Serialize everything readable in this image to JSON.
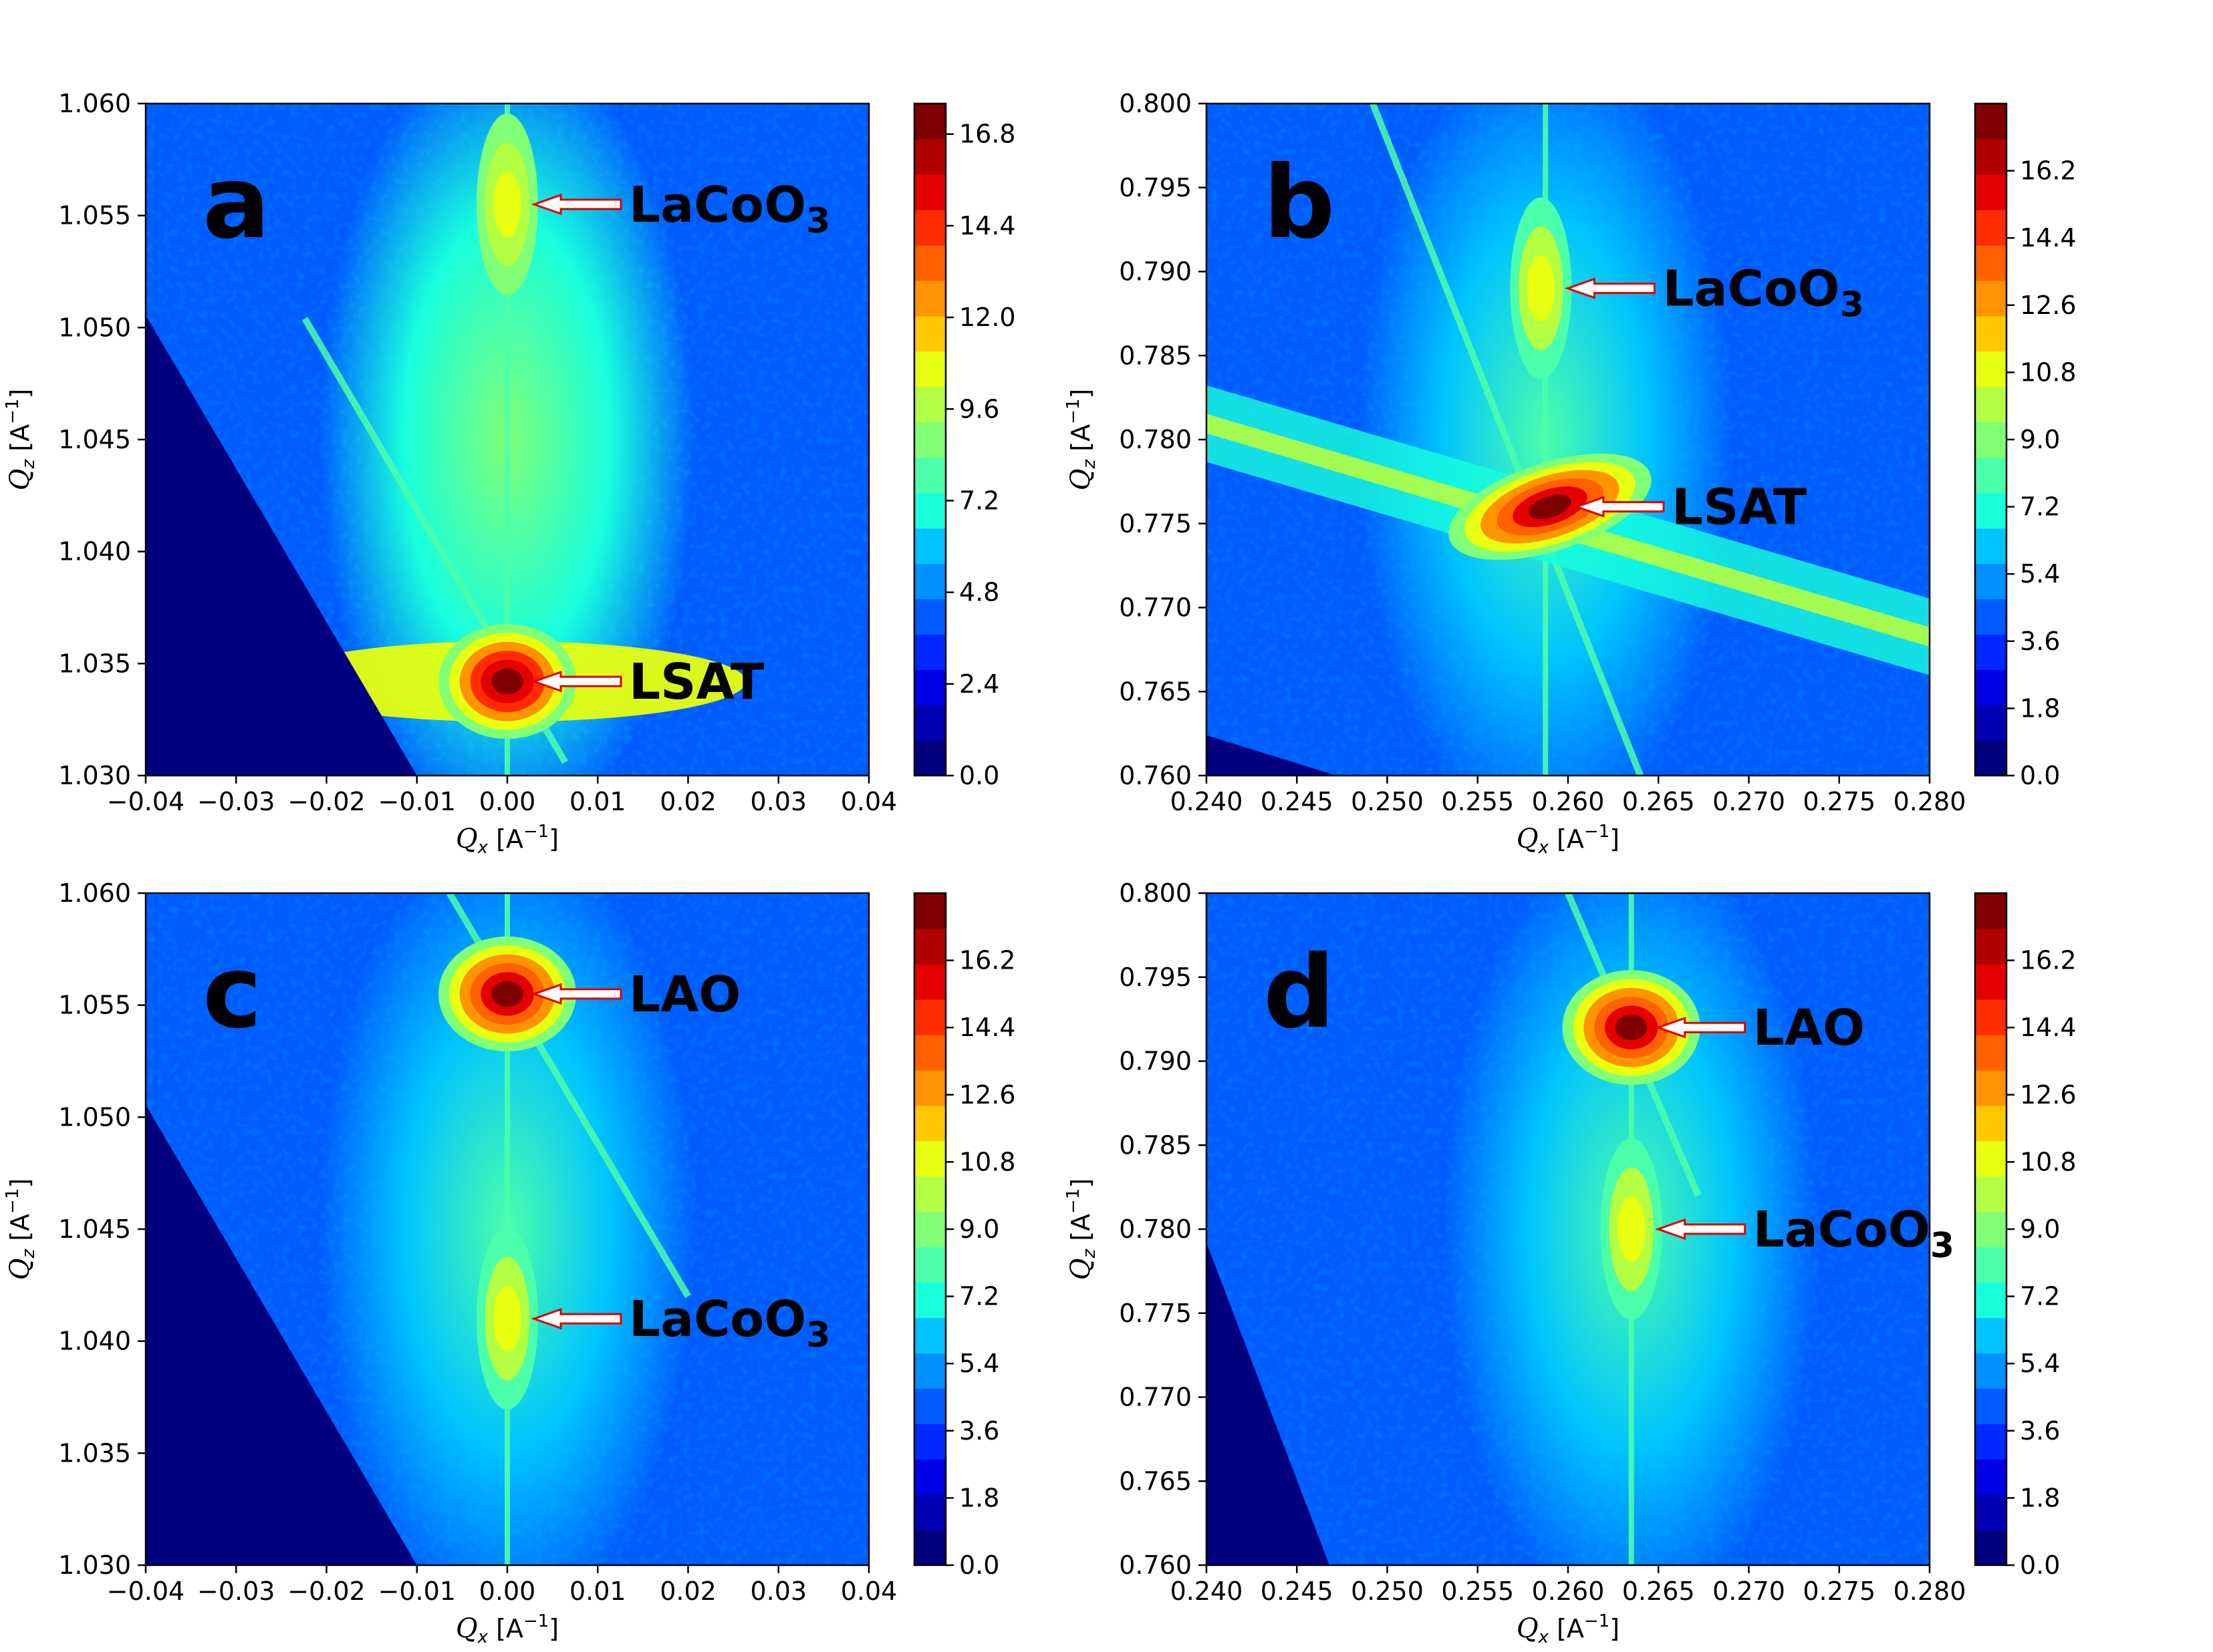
{
  "figure_title": "",
  "colormap": [
    "#00007f",
    "#0000b2",
    "#0000e5",
    "#0028ff",
    "#005cff",
    "#0090ff",
    "#00c4ff",
    "#18ffde",
    "#4cffaa",
    "#80ff77",
    "#b3ff43",
    "#e7ff10",
    "#ffc800",
    "#ff9400",
    "#ff6000",
    "#ff2c00",
    "#e50000",
    "#b20000",
    "#7f0000"
  ],
  "chart_data": [
    {
      "type": "heatmap",
      "panel": "a",
      "xlabel": "Q_x [A^-1]",
      "ylabel": "Q_z [A^-1]",
      "xlim": [
        -0.04,
        0.04
      ],
      "ylim": [
        1.03,
        1.06
      ],
      "xticks": [
        "-0.04",
        "-0.03",
        "-0.02",
        "-0.01",
        "0.00",
        "0.01",
        "0.02",
        "0.03",
        "0.04"
      ],
      "yticks": [
        "1.030",
        "1.035",
        "1.040",
        "1.045",
        "1.050",
        "1.055",
        "1.060"
      ],
      "colorbar_ticks": [
        "0.0",
        "2.4",
        "4.8",
        "7.2",
        "9.6",
        "12.0",
        "14.4",
        "16.8"
      ],
      "colorbar_range": [
        0,
        17.6
      ],
      "peaks": [
        {
          "label": "LaCoO",
          "sub": "3",
          "x": 0.0,
          "y": 1.0555,
          "intensity": 9.6
        },
        {
          "label": "LSAT",
          "sub": "",
          "x": 0.0,
          "y": 1.0342,
          "intensity": 17.6
        }
      ]
    },
    {
      "type": "heatmap",
      "panel": "b",
      "xlabel": "Q_x [A^-1]",
      "ylabel": "Q_z [A^-1]",
      "xlim": [
        0.24,
        0.28
      ],
      "ylim": [
        0.76,
        0.8
      ],
      "xticks": [
        "0.240",
        "0.245",
        "0.250",
        "0.255",
        "0.260",
        "0.265",
        "0.270",
        "0.275",
        "0.280"
      ],
      "yticks": [
        "0.760",
        "0.765",
        "0.770",
        "0.775",
        "0.780",
        "0.785",
        "0.790",
        "0.795",
        "0.800"
      ],
      "colorbar_ticks": [
        "0.0",
        "1.8",
        "3.6",
        "5.4",
        "7.2",
        "9.0",
        "10.8",
        "12.6",
        "14.4",
        "16.2"
      ],
      "colorbar_range": [
        0,
        18.0
      ],
      "peaks": [
        {
          "label": "LaCoO",
          "sub": "3",
          "x": 0.2585,
          "y": 0.789,
          "intensity": 10.8
        },
        {
          "label": "LSAT",
          "sub": "",
          "x": 0.259,
          "y": 0.776,
          "intensity": 18.0
        }
      ]
    },
    {
      "type": "heatmap",
      "panel": "c",
      "xlabel": "Q_x [A^-1]",
      "ylabel": "Q_z [A^-1]",
      "xlim": [
        -0.04,
        0.04
      ],
      "ylim": [
        1.03,
        1.06
      ],
      "xticks": [
        "-0.04",
        "-0.03",
        "-0.02",
        "-0.01",
        "0.00",
        "0.01",
        "0.02",
        "0.03",
        "0.04"
      ],
      "yticks": [
        "1.030",
        "1.035",
        "1.040",
        "1.045",
        "1.050",
        "1.055",
        "1.060"
      ],
      "colorbar_ticks": [
        "0.0",
        "1.8",
        "3.6",
        "5.4",
        "7.2",
        "9.0",
        "10.8",
        "12.6",
        "14.4",
        "16.2"
      ],
      "colorbar_range": [
        0,
        18.0
      ],
      "peaks": [
        {
          "label": "LAO",
          "sub": "",
          "x": 0.0,
          "y": 1.0555,
          "intensity": 18.0
        },
        {
          "label": "LaCoO",
          "sub": "3",
          "x": 0.0,
          "y": 1.041,
          "intensity": 9.0
        }
      ]
    },
    {
      "type": "heatmap",
      "panel": "d",
      "xlabel": "Q_x [A^-1]",
      "ylabel": "Q_z [A^-1]",
      "xlim": [
        0.24,
        0.28
      ],
      "ylim": [
        0.76,
        0.8
      ],
      "xticks": [
        "0.240",
        "0.245",
        "0.250",
        "0.255",
        "0.260",
        "0.265",
        "0.270",
        "0.275",
        "0.280"
      ],
      "yticks": [
        "0.760",
        "0.765",
        "0.770",
        "0.775",
        "0.780",
        "0.785",
        "0.790",
        "0.795",
        "0.800"
      ],
      "colorbar_ticks": [
        "0.0",
        "1.8",
        "3.6",
        "5.4",
        "7.2",
        "9.0",
        "10.8",
        "12.6",
        "14.4",
        "16.2"
      ],
      "colorbar_range": [
        0,
        18.0
      ],
      "peaks": [
        {
          "label": "LAO",
          "sub": "",
          "x": 0.2635,
          "y": 0.792,
          "intensity": 18.0
        },
        {
          "label": "LaCoO",
          "sub": "3",
          "x": 0.2635,
          "y": 0.78,
          "intensity": 9.0
        }
      ]
    }
  ]
}
